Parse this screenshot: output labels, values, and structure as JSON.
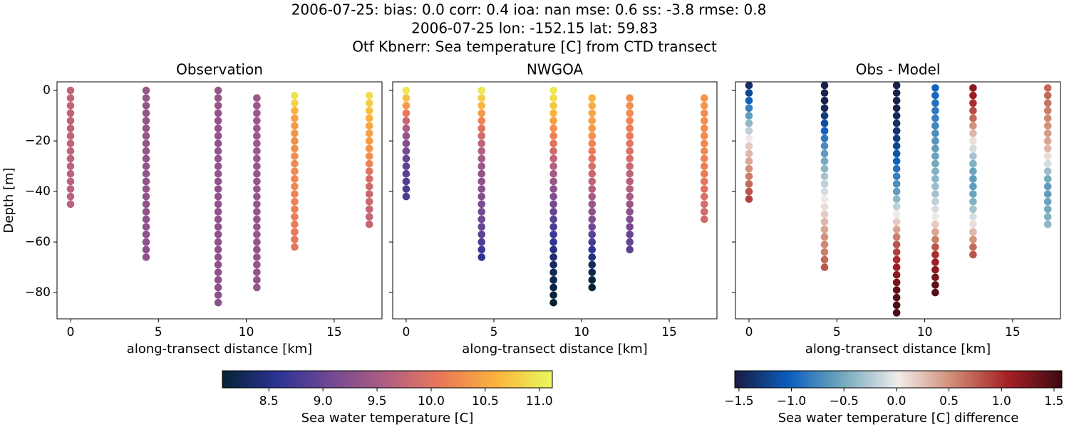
{
  "suptitle": [
    "2006-07-25: bias: 0.0  corr: 0.4  ioa: nan  mse: 0.6  ss: -3.8  rmse: 0.8",
    "2006-07-25 lon: -152.15 lat: 59.83",
    "Otf Kbnerr: Sea temperature [C] from CTD transect"
  ],
  "chart_data": [
    {
      "type": "scatter",
      "title": "Observation",
      "xlabel": "along-transect distance [km]",
      "ylabel": "Depth [m]",
      "colorbar": 0,
      "xlim": [
        -0.77,
        17.72
      ],
      "ylim": [
        -90.4,
        3.4
      ],
      "xticks": [
        0,
        5,
        10,
        15
      ],
      "yticks": [
        0,
        {
          "value": -20,
          "label": "−20"
        },
        {
          "value": -40,
          "label": "−40"
        },
        {
          "value": -60,
          "label": "−60"
        },
        {
          "value": -80,
          "label": "−80"
        }
      ],
      "series": [
        {
          "x": 0,
          "depth": [
            0,
            -3,
            -6,
            -9,
            -12,
            -15,
            -18,
            -21,
            -24,
            -27,
            -30,
            -33,
            -36,
            -39,
            -42,
            -45
          ],
          "values": [
            9.72,
            9.72,
            9.71,
            9.71,
            9.7,
            9.7,
            9.7,
            9.69,
            9.69,
            9.69,
            9.68,
            9.68,
            9.68,
            9.67,
            9.67,
            9.67
          ]
        },
        {
          "x": 4.3,
          "depth": [
            0,
            -3,
            -6,
            -9,
            -12,
            -15,
            -18,
            -21,
            -24,
            -27,
            -30,
            -33,
            -36,
            -39,
            -42,
            -45,
            -48,
            -51,
            -54,
            -57,
            -60,
            -63,
            -66
          ],
          "values": [
            9.38,
            9.38,
            9.37,
            9.37,
            9.37,
            9.36,
            9.36,
            9.36,
            9.35,
            9.35,
            9.35,
            9.34,
            9.34,
            9.34,
            9.33,
            9.33,
            9.33,
            9.32,
            9.32,
            9.31,
            9.31,
            9.3,
            9.3
          ]
        },
        {
          "x": 8.4,
          "depth": [
            0,
            -3,
            -6,
            -9,
            -12,
            -15,
            -18,
            -21,
            -24,
            -27,
            -30,
            -33,
            -36,
            -39,
            -42,
            -45,
            -48,
            -51,
            -54,
            -57,
            -60,
            -63,
            -66,
            -69,
            -72,
            -75,
            -78,
            -81,
            -84
          ],
          "values": [
            9.36,
            9.36,
            9.36,
            9.35,
            9.35,
            9.35,
            9.35,
            9.34,
            9.34,
            9.34,
            9.34,
            9.33,
            9.33,
            9.33,
            9.33,
            9.32,
            9.32,
            9.32,
            9.32,
            9.31,
            9.31,
            9.31,
            9.31,
            9.3,
            9.3,
            9.3,
            9.3,
            9.29,
            9.29
          ]
        },
        {
          "x": 10.6,
          "depth": [
            -3,
            -6,
            -9,
            -12,
            -15,
            -18,
            -21,
            -24,
            -27,
            -30,
            -33,
            -36,
            -39,
            -42,
            -45,
            -48,
            -51,
            -54,
            -57,
            -60,
            -63,
            -66,
            -69,
            -72,
            -75,
            -78
          ],
          "values": [
            9.42,
            9.42,
            9.41,
            9.41,
            9.41,
            9.4,
            9.4,
            9.4,
            9.39,
            9.39,
            9.39,
            9.38,
            9.38,
            9.38,
            9.37,
            9.37,
            9.37,
            9.36,
            9.36,
            9.36,
            9.35,
            9.35,
            9.35,
            9.34,
            9.34,
            9.34
          ]
        },
        {
          "x": 12.75,
          "depth": [
            -2,
            -5,
            -8,
            -11,
            -14,
            -17,
            -20,
            -23,
            -26,
            -29,
            -32,
            -35,
            -38,
            -41,
            -44,
            -47,
            -50,
            -53,
            -56,
            -59,
            -62
          ],
          "values": [
            10.95,
            10.85,
            10.6,
            10.45,
            10.4,
            10.35,
            10.3,
            10.3,
            10.28,
            10.26,
            10.25,
            10.24,
            10.22,
            10.2,
            10.18,
            10.16,
            10.14,
            10.12,
            10.1,
            10.07,
            10.05
          ]
        },
        {
          "x": 17,
          "depth": [
            -2,
            -5,
            -8,
            -11,
            -14,
            -17,
            -20,
            -23,
            -26,
            -29,
            -32,
            -35,
            -38,
            -41,
            -44,
            -47,
            -50,
            -53
          ],
          "values": [
            10.9,
            10.8,
            10.7,
            10.6,
            10.5,
            10.45,
            10.4,
            10.35,
            10.3,
            10.2,
            10.0,
            9.9,
            9.85,
            9.8,
            9.8,
            9.78,
            9.75,
            9.75
          ]
        }
      ]
    },
    {
      "type": "scatter",
      "title": "NWGOA",
      "xlabel": "along-transect distance [km]",
      "colorbar": 0,
      "xlim": [
        -0.77,
        17.72
      ],
      "ylim": [
        -90.4,
        3.4
      ],
      "xticks": [
        0,
        5,
        10,
        15
      ],
      "series": [
        {
          "x": 0,
          "depth": [
            0,
            -3,
            -6,
            -9,
            -12,
            -15,
            -18,
            -21,
            -24,
            -27,
            -30,
            -33,
            -36,
            -39,
            -42
          ],
          "values": [
            11.0,
            10.7,
            10.4,
            10.1,
            9.8,
            9.55,
            9.35,
            9.2,
            9.1,
            9.0,
            8.95,
            8.9,
            8.85,
            8.8,
            8.78
          ]
        },
        {
          "x": 4.3,
          "depth": [
            0,
            -3,
            -6,
            -9,
            -12,
            -15,
            -18,
            -21,
            -24,
            -27,
            -30,
            -33,
            -36,
            -39,
            -42,
            -45,
            -48,
            -51,
            -54,
            -57,
            -60,
            -63,
            -66
          ],
          "values": [
            11.0,
            10.8,
            10.6,
            10.4,
            10.2,
            10.0,
            9.85,
            9.7,
            9.6,
            9.5,
            9.4,
            9.35,
            9.3,
            9.25,
            9.2,
            9.15,
            9.1,
            9.05,
            9.0,
            8.9,
            8.8,
            8.7,
            8.6
          ]
        },
        {
          "x": 8.4,
          "depth": [
            0,
            -3,
            -6,
            -9,
            -12,
            -15,
            -18,
            -21,
            -24,
            -27,
            -30,
            -33,
            -36,
            -39,
            -42,
            -45,
            -48,
            -51,
            -54,
            -57,
            -60,
            -63,
            -66,
            -69,
            -72,
            -75,
            -78,
            -81,
            -84
          ],
          "values": [
            11.0,
            10.9,
            10.75,
            10.6,
            10.45,
            10.3,
            10.15,
            10.0,
            9.85,
            9.7,
            9.6,
            9.5,
            9.4,
            9.3,
            9.2,
            9.1,
            9.0,
            8.9,
            8.8,
            8.7,
            8.6,
            8.5,
            8.4,
            8.3,
            8.25,
            8.2,
            8.15,
            8.1,
            8.08
          ]
        },
        {
          "x": 10.6,
          "depth": [
            -3,
            -6,
            -9,
            -12,
            -15,
            -18,
            -21,
            -24,
            -27,
            -30,
            -33,
            -36,
            -39,
            -42,
            -45,
            -48,
            -51,
            -54,
            -57,
            -60,
            -63,
            -66,
            -69,
            -72,
            -75,
            -78
          ],
          "values": [
            10.6,
            10.55,
            10.5,
            10.45,
            10.4,
            10.3,
            10.2,
            10.1,
            10.0,
            9.9,
            9.8,
            9.7,
            9.6,
            9.5,
            9.4,
            9.3,
            9.2,
            9.05,
            8.9,
            8.75,
            8.6,
            8.45,
            8.3,
            8.2,
            8.12,
            8.08
          ]
        },
        {
          "x": 12.75,
          "depth": [
            -3,
            -6,
            -9,
            -12,
            -15,
            -18,
            -21,
            -24,
            -27,
            -30,
            -33,
            -36,
            -39,
            -42,
            -45,
            -48,
            -51,
            -54,
            -57,
            -60,
            -63
          ],
          "values": [
            10.3,
            10.3,
            10.25,
            10.2,
            10.15,
            10.1,
            10.0,
            9.95,
            9.9,
            9.8,
            9.7,
            9.65,
            9.6,
            9.5,
            9.4,
            9.3,
            9.2,
            9.1,
            9.0,
            8.95,
            8.9
          ]
        },
        {
          "x": 17,
          "depth": [
            -3,
            -6,
            -9,
            -12,
            -15,
            -18,
            -21,
            -24,
            -27,
            -30,
            -33,
            -36,
            -39,
            -42,
            -45,
            -48,
            -51
          ],
          "values": [
            10.35,
            10.35,
            10.3,
            10.3,
            10.28,
            10.26,
            10.24,
            10.22,
            10.2,
            10.15,
            10.1,
            10.05,
            10.0,
            9.95,
            9.9,
            9.88,
            9.85
          ]
        }
      ]
    },
    {
      "type": "scatter",
      "title": "Obs - Model",
      "xlabel": "along-transect distance [km]",
      "colorbar": 1,
      "xlim": [
        -0.77,
        17.72
      ],
      "ylim": [
        -90.4,
        3.4
      ],
      "xticks": [
        0,
        5,
        10,
        15
      ],
      "series": [
        {
          "x": 0,
          "depth": [
            2,
            -1,
            -4,
            -7,
            -10,
            -13,
            -16,
            -19,
            -22,
            -25,
            -28,
            -31,
            -34,
            -37,
            -40,
            -43
          ],
          "values": [
            -1.4,
            -1.2,
            -1.0,
            -0.8,
            -0.6,
            -0.4,
            -0.2,
            0.0,
            0.2,
            0.3,
            0.4,
            0.5,
            0.6,
            0.7,
            0.8,
            0.9
          ]
        },
        {
          "x": 4.3,
          "depth": [
            2,
            -1,
            -4,
            -7,
            -10,
            -13,
            -16,
            -19,
            -22,
            -25,
            -28,
            -31,
            -34,
            -37,
            -40,
            -43,
            -46,
            -49,
            -52,
            -55,
            -58,
            -61,
            -64,
            -67,
            -70
          ],
          "values": [
            -1.5,
            -1.5,
            -1.5,
            -1.45,
            -1.3,
            -1.15,
            -1.0,
            -0.85,
            -0.7,
            -0.6,
            -0.5,
            -0.4,
            -0.3,
            -0.2,
            -0.1,
            0.0,
            0.1,
            0.2,
            0.3,
            0.4,
            0.5,
            0.55,
            0.6,
            0.7,
            0.8
          ]
        },
        {
          "x": 8.4,
          "depth": [
            2,
            -1,
            -4,
            -7,
            -10,
            -13,
            -16,
            -19,
            -22,
            -25,
            -28,
            -31,
            -34,
            -37,
            -40,
            -43,
            -46,
            -49,
            -52,
            -55,
            -58,
            -61,
            -64,
            -67,
            -70,
            -73,
            -76,
            -79,
            -82,
            -85,
            -88
          ],
          "values": [
            -1.5,
            -1.5,
            -1.5,
            -1.5,
            -1.45,
            -1.4,
            -1.35,
            -1.3,
            -1.2,
            -1.1,
            -1.0,
            -0.9,
            -0.8,
            -0.7,
            -0.6,
            -0.4,
            -0.2,
            0.0,
            0.2,
            0.4,
            0.6,
            0.8,
            0.9,
            1.0,
            1.1,
            1.2,
            1.3,
            1.4,
            1.45,
            1.5,
            1.5
          ]
        },
        {
          "x": 10.6,
          "depth": [
            1,
            -2,
            -5,
            -8,
            -11,
            -14,
            -17,
            -20,
            -23,
            -26,
            -29,
            -32,
            -35,
            -38,
            -41,
            -44,
            -47,
            -50,
            -53,
            -56,
            -59,
            -62,
            -65,
            -68,
            -71,
            -74,
            -77,
            -80
          ],
          "values": [
            -1.0,
            -0.95,
            -0.9,
            -0.85,
            -0.8,
            -0.75,
            -0.7,
            -0.65,
            -0.6,
            -0.55,
            -0.5,
            -0.45,
            -0.4,
            -0.35,
            -0.3,
            -0.2,
            -0.1,
            0.0,
            0.2,
            0.4,
            0.6,
            0.8,
            1.0,
            1.1,
            1.2,
            1.3,
            1.4,
            1.45
          ]
        },
        {
          "x": 12.75,
          "depth": [
            1,
            -2,
            -5,
            -8,
            -11,
            -14,
            -17,
            -20,
            -23,
            -26,
            -29,
            -32,
            -35,
            -38,
            -41,
            -44,
            -47,
            -50,
            -53,
            -56,
            -59,
            -62,
            -65
          ],
          "values": [
            1.2,
            1.1,
            1.0,
            0.85,
            0.7,
            0.5,
            0.3,
            0.1,
            -0.1,
            -0.3,
            -0.45,
            -0.55,
            -0.6,
            -0.6,
            -0.55,
            -0.45,
            -0.3,
            -0.1,
            0.1,
            0.3,
            0.5,
            0.7,
            0.8
          ]
        },
        {
          "x": 17,
          "depth": [
            1,
            -2,
            -5,
            -8,
            -11,
            -14,
            -17,
            -20,
            -23,
            -26,
            -29,
            -32,
            -35,
            -38,
            -41,
            -44,
            -47,
            -50,
            -53
          ],
          "values": [
            0.7,
            0.7,
            0.65,
            0.6,
            0.55,
            0.5,
            0.45,
            0.4,
            0.3,
            0.1,
            -0.1,
            -0.35,
            -0.5,
            -0.6,
            -0.6,
            -0.55,
            -0.5,
            -0.45,
            -0.4
          ]
        }
      ]
    }
  ],
  "colorbars": [
    {
      "label": "Sea water temperature [C]",
      "lim": [
        8.07,
        11.12
      ],
      "ticks": [
        8.5,
        {
          "value": 9.0,
          "label": "9.0"
        },
        9.5,
        {
          "value": 10.0,
          "label": "10.0"
        },
        10.5,
        {
          "value": 11.0,
          "label": "11.0"
        }
      ],
      "colormap": [
        "#042333",
        "#2c3395",
        "#744992",
        "#b15f82",
        "#eb7958",
        "#fbb43d",
        "#e8fa5b"
      ]
    },
    {
      "label": "Sea water temperature [C] difference",
      "lim": [
        -1.54,
        1.575
      ],
      "ticks": [
        {
          "value": -1.5,
          "label": "−1.5"
        },
        {
          "value": -1.0,
          "label": "−1.0"
        },
        {
          "value": -0.5,
          "label": "−0.5"
        },
        {
          "value": 0.0,
          "label": "0.0"
        },
        0.5,
        {
          "value": 1.0,
          "label": "1.0"
        },
        1.5
      ],
      "colormap": [
        "#181c43",
        "#0c5ebe",
        "#75aabe",
        "#f1eceb",
        "#d08b73",
        "#a52125",
        "#3c0912"
      ]
    }
  ]
}
